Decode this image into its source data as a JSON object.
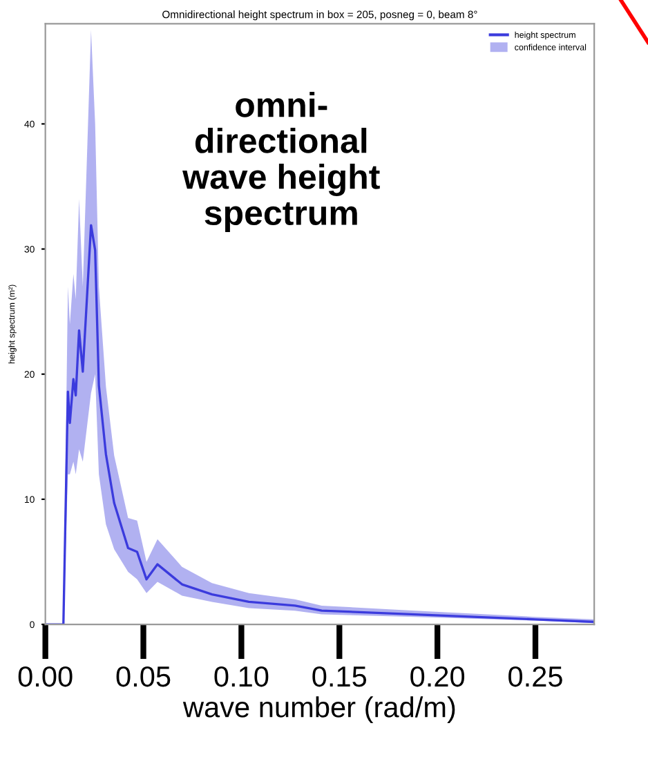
{
  "chart_data": {
    "type": "line",
    "title": "Omnidirectional height spectrum in box = 205, posneg = 0, beam 8°",
    "xlabel": "wave number (rad/m)",
    "ylabel": "height spectrum (m²)",
    "annotations": [
      "omni-\ndirectional\nwave height\nspectrum",
      "confidence interval"
    ],
    "x": [
      0.0,
      0.0092,
      0.0115,
      0.0125,
      0.0143,
      0.0155,
      0.0172,
      0.0191,
      0.0233,
      0.0254,
      0.0273,
      0.0309,
      0.0351,
      0.0422,
      0.0468,
      0.0516,
      0.0572,
      0.0697,
      0.085,
      0.1038,
      0.1273,
      0.141,
      0.1886,
      0.25,
      0.28
    ],
    "series": [
      {
        "name": "height spectrum",
        "color": "#3b3bdd",
        "values": [
          0,
          0,
          18.6,
          16.1,
          19.6,
          18.3,
          23.5,
          20.2,
          31.9,
          29.9,
          19.1,
          13.6,
          9.7,
          6.1,
          5.8,
          3.6,
          4.8,
          3.2,
          2.4,
          1.8,
          1.5,
          1.1,
          0.8,
          0.4,
          0.2
        ],
        "lower": [
          0,
          0,
          12,
          12,
          13,
          12,
          14,
          13,
          18.5,
          20,
          12,
          8,
          6,
          4.2,
          3.6,
          2.5,
          3.4,
          2.3,
          1.8,
          1.3,
          1.1,
          0.8,
          0.6,
          0.3,
          0.1
        ],
        "upper": [
          0,
          0,
          27,
          24,
          28,
          26,
          34,
          27,
          47.5,
          40,
          27,
          19,
          13.5,
          8.5,
          8.3,
          5.0,
          6.8,
          4.6,
          3.3,
          2.5,
          2.0,
          1.5,
          1.1,
          0.6,
          0.4
        ]
      }
    ],
    "xlim": [
      0.0,
      0.28
    ],
    "xticks": [
      {
        "value": 0.0,
        "label": "0.00"
      },
      {
        "value": 0.05,
        "label": "0.05"
      },
      {
        "value": 0.1,
        "label": "0.10"
      },
      {
        "value": 0.15,
        "label": "0.15"
      },
      {
        "value": 0.2,
        "label": "0.20"
      },
      {
        "value": 0.25,
        "label": "0.25"
      }
    ],
    "ylim": [
      0,
      48
    ],
    "yticks": [
      0,
      10,
      20,
      30,
      40
    ],
    "legend": "top right",
    "grid": false
  }
}
